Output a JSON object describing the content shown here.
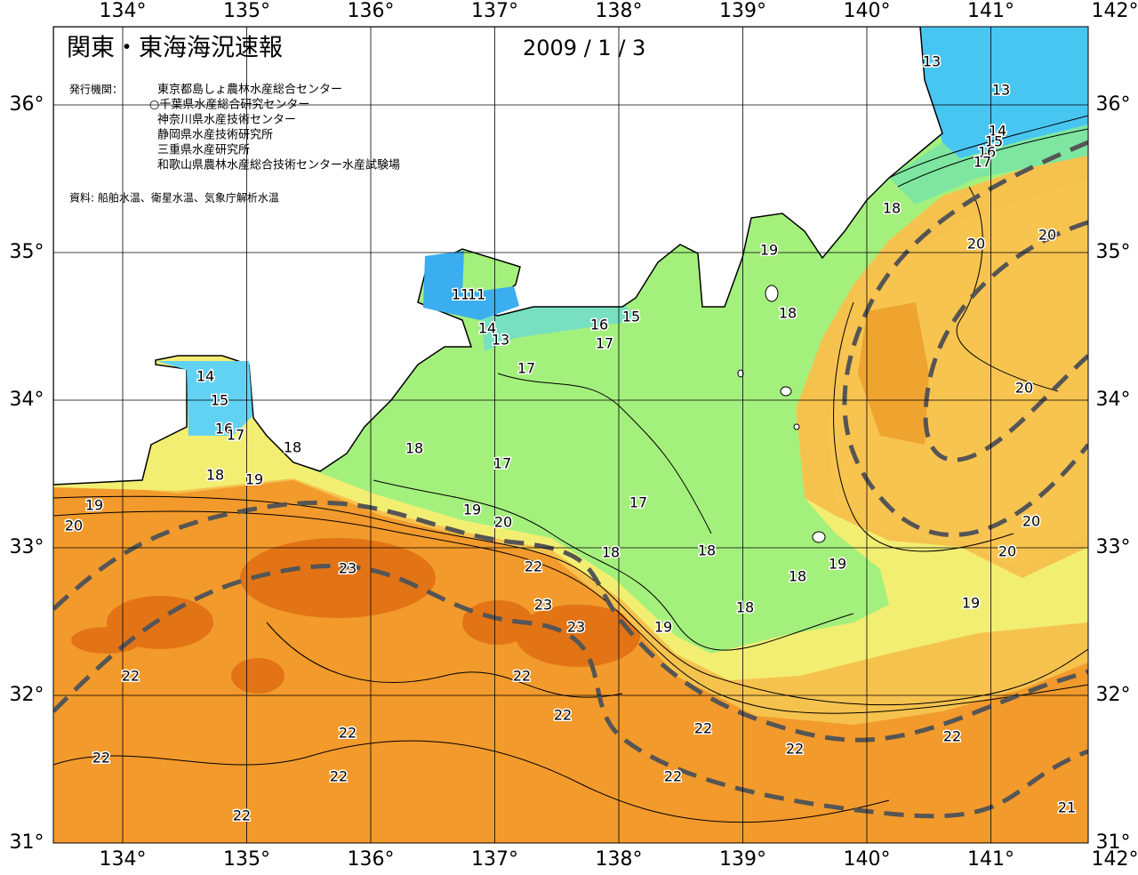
{
  "map": {
    "title": "関東・東海海況速報",
    "date": "2009 / 1 / 3",
    "issuer_heading": "発行機関：",
    "issuers": [
      "東京都島しょ農林水産総合センター",
      "○千葉県水産総合研究センター",
      "神奈川県水産技術センター",
      "静岡県水産技術研究所",
      "三重県水産研究所",
      "和歌山県農林水産総合技術センター水産試験場"
    ],
    "source": "資料: 船舶水温、衛星水温、気象庁解析水温",
    "longitudes": [
      {
        "value": 134,
        "label": "134°"
      },
      {
        "value": 135,
        "label": "135°"
      },
      {
        "value": 136,
        "label": "136°"
      },
      {
        "value": 137,
        "label": "137°"
      },
      {
        "value": 138,
        "label": "138°"
      },
      {
        "value": 139,
        "label": "139°"
      },
      {
        "value": 140,
        "label": "140°"
      },
      {
        "value": 141,
        "label": "141°"
      },
      {
        "value": 142,
        "label": "142°"
      }
    ],
    "latitudes": [
      {
        "value": 36,
        "label": "36°"
      },
      {
        "value": 35,
        "label": "35°"
      },
      {
        "value": 34,
        "label": "34°"
      },
      {
        "value": 33,
        "label": "33°"
      },
      {
        "value": 32,
        "label": "32°"
      },
      {
        "value": 31,
        "label": "31°"
      }
    ],
    "isotherm_labels": [
      13,
      13,
      14,
      15,
      16,
      17,
      18,
      19,
      20,
      20,
      18,
      16,
      15,
      17,
      17,
      11,
      11,
      14,
      13,
      14,
      15,
      16,
      17,
      18,
      18,
      17,
      18,
      19,
      19,
      20,
      19,
      20,
      17,
      20,
      20,
      20,
      18,
      18,
      19,
      22,
      23,
      18,
      23,
      18,
      19,
      23,
      19,
      22,
      22,
      22,
      22,
      22,
      22,
      22,
      22,
      22,
      22,
      21,
      22
    ]
  }
}
